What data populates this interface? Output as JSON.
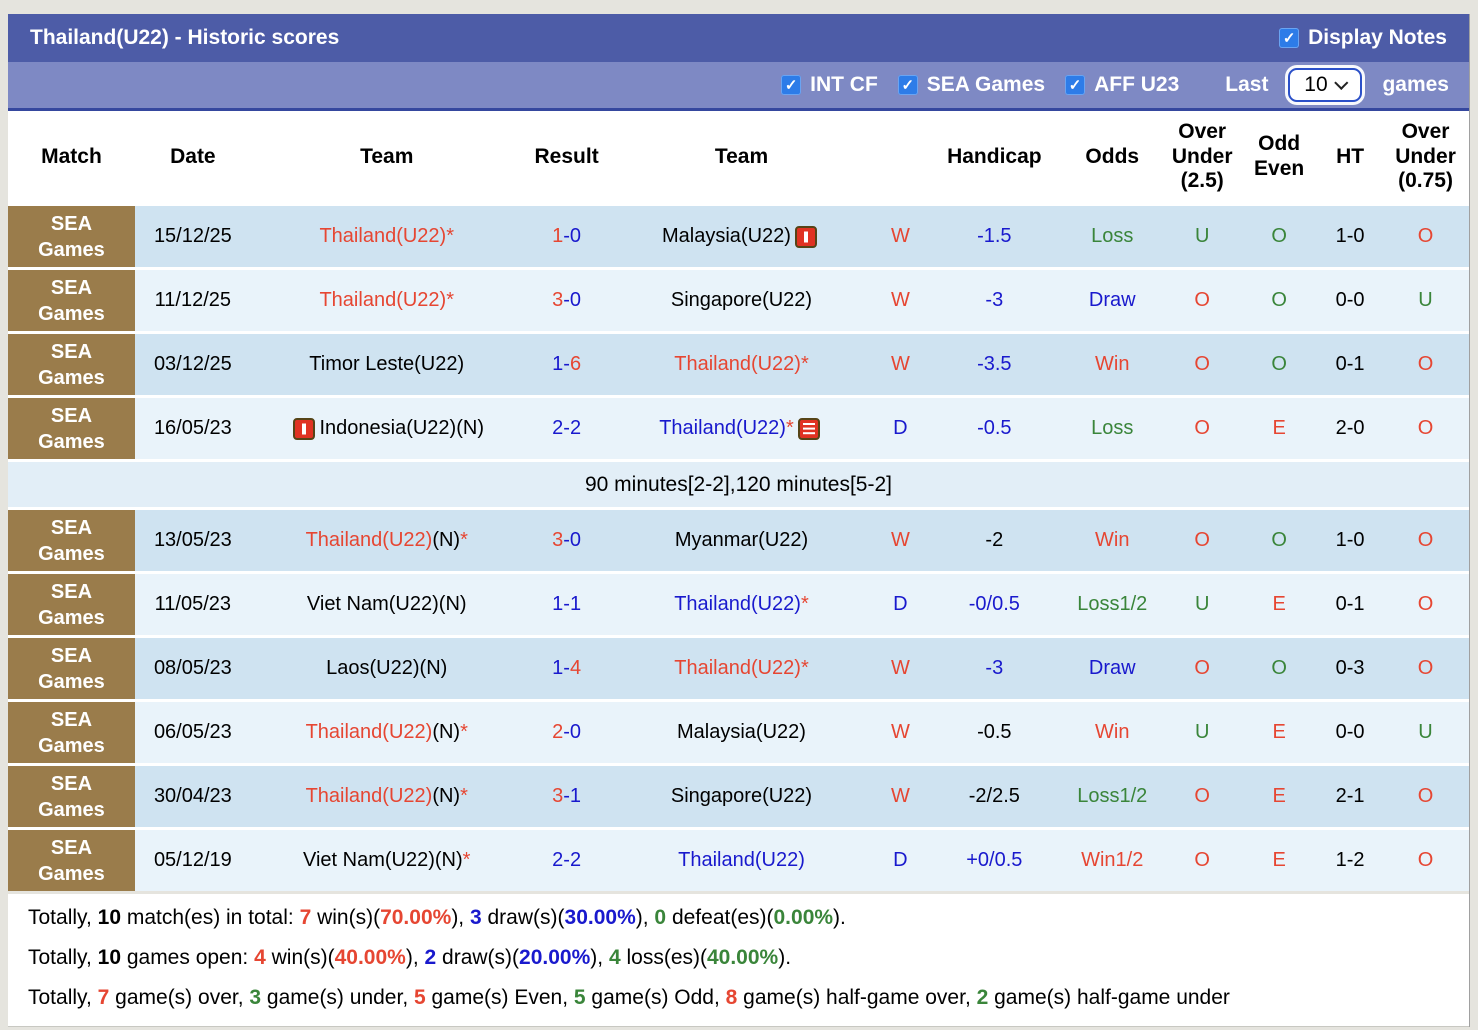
{
  "title_bar": {
    "title": "Thailand(U22) - Historic scores",
    "display_notes_label": "Display Notes",
    "display_notes_checked": true
  },
  "filter_bar": {
    "checkboxes": [
      {
        "label": "INT CF",
        "checked": true
      },
      {
        "label": "SEA Games",
        "checked": true
      },
      {
        "label": "AFF U23",
        "checked": true
      }
    ],
    "last_label": "Last",
    "last_value": "10",
    "games_label": "games"
  },
  "colors": {
    "win": "#e64632",
    "draw": "#1919cd",
    "loss": "#3a853a",
    "title_bar": "#4d5ca7",
    "filter_bar": "#7e89c4",
    "match_badge": "#9a7c4b",
    "row_dark": "#cfe3f1",
    "row_light": "#e9f3fa"
  },
  "table": {
    "headers": [
      {
        "col": "match",
        "lines": [
          "Match"
        ]
      },
      {
        "col": "date",
        "lines": [
          "Date"
        ]
      },
      {
        "col": "team1",
        "lines": [
          "Team"
        ]
      },
      {
        "col": "result",
        "lines": [
          "Result"
        ]
      },
      {
        "col": "team2",
        "lines": [
          "Team"
        ]
      },
      {
        "col": "wdl",
        "lines": []
      },
      {
        "col": "handicap",
        "lines": [
          "Handicap"
        ]
      },
      {
        "col": "odds",
        "lines": [
          "Odds"
        ]
      },
      {
        "col": "ou25",
        "lines": [
          "Over",
          "Under",
          "(2.5)"
        ]
      },
      {
        "col": "oddeven",
        "lines": [
          "Odd",
          "Even"
        ]
      },
      {
        "col": "ht",
        "lines": [
          "HT"
        ]
      },
      {
        "col": "ou075",
        "lines": [
          "Over",
          "Under",
          "(0.75)"
        ]
      }
    ],
    "rows": [
      {
        "shade": "dark",
        "match": "SEA Games",
        "date": "15/12/25",
        "team1": [
          {
            "t": "Thailand(U22)*",
            "c": "red"
          }
        ],
        "result": [
          {
            "t": "1",
            "c": "red"
          },
          {
            "t": "-0",
            "c": "blue"
          }
        ],
        "team2": [
          {
            "t": "Malaysia(U22)",
            "c": "black"
          },
          {
            "icon": "red-card-icon"
          }
        ],
        "wdl": [
          {
            "t": "W",
            "c": "red"
          }
        ],
        "handicap": [
          {
            "t": "-1.5",
            "c": "blue"
          }
        ],
        "odds": [
          {
            "t": "Loss",
            "c": "green"
          }
        ],
        "ou25": [
          {
            "t": "U",
            "c": "green"
          }
        ],
        "oddeven": [
          {
            "t": "O",
            "c": "green"
          }
        ],
        "ht": "1-0",
        "ou075": [
          {
            "t": "O",
            "c": "red"
          }
        ]
      },
      {
        "shade": "light",
        "match": "SEA Games",
        "date": "11/12/25",
        "team1": [
          {
            "t": "Thailand(U22)*",
            "c": "red"
          }
        ],
        "result": [
          {
            "t": "3",
            "c": "red"
          },
          {
            "t": "-0",
            "c": "blue"
          }
        ],
        "team2": [
          {
            "t": "Singapore(U22)",
            "c": "black"
          }
        ],
        "wdl": [
          {
            "t": "W",
            "c": "red"
          }
        ],
        "handicap": [
          {
            "t": "-3",
            "c": "blue"
          }
        ],
        "odds": [
          {
            "t": "Draw",
            "c": "blue"
          }
        ],
        "ou25": [
          {
            "t": "O",
            "c": "red"
          }
        ],
        "oddeven": [
          {
            "t": "O",
            "c": "green"
          }
        ],
        "ht": "0-0",
        "ou075": [
          {
            "t": "U",
            "c": "green"
          }
        ]
      },
      {
        "shade": "dark",
        "match": "SEA Games",
        "date": "03/12/25",
        "team1": [
          {
            "t": "Timor Leste(U22)",
            "c": "black"
          }
        ],
        "result": [
          {
            "t": "1-",
            "c": "blue"
          },
          {
            "t": "6",
            "c": "red"
          }
        ],
        "team2": [
          {
            "t": "Thailand(U22)*",
            "c": "red"
          }
        ],
        "wdl": [
          {
            "t": "W",
            "c": "red"
          }
        ],
        "handicap": [
          {
            "t": "-3.5",
            "c": "blue"
          }
        ],
        "odds": [
          {
            "t": "Win",
            "c": "red"
          }
        ],
        "ou25": [
          {
            "t": "O",
            "c": "red"
          }
        ],
        "oddeven": [
          {
            "t": "O",
            "c": "green"
          }
        ],
        "ht": "0-1",
        "ou075": [
          {
            "t": "O",
            "c": "red"
          }
        ]
      },
      {
        "shade": "light",
        "match": "SEA Games",
        "date": "16/05/23",
        "team1": [
          {
            "icon": "red-card-icon"
          },
          {
            "t": "Indonesia(U22)(N)",
            "c": "black"
          }
        ],
        "result": [
          {
            "t": "2-2",
            "c": "blue"
          }
        ],
        "team2": [
          {
            "t": "Thailand(U22)",
            "c": "blue"
          },
          {
            "t": "*",
            "c": "red"
          },
          {
            "icon": "note-icon"
          }
        ],
        "wdl": [
          {
            "t": "D",
            "c": "blue"
          }
        ],
        "handicap": [
          {
            "t": "-0.5",
            "c": "blue"
          }
        ],
        "odds": [
          {
            "t": "Loss",
            "c": "green"
          }
        ],
        "ou25": [
          {
            "t": "O",
            "c": "red"
          }
        ],
        "oddeven": [
          {
            "t": "E",
            "c": "red"
          }
        ],
        "ht": "2-0",
        "ou075": [
          {
            "t": "O",
            "c": "red"
          }
        ]
      },
      {
        "note": "90 minutes[2-2],120 minutes[5-2]"
      },
      {
        "shade": "dark",
        "match": "SEA Games",
        "date": "13/05/23",
        "team1": [
          {
            "t": "Thailand(U22)",
            "c": "red"
          },
          {
            "t": "(N)",
            "c": "black"
          },
          {
            "t": "*",
            "c": "red"
          }
        ],
        "result": [
          {
            "t": "3",
            "c": "red"
          },
          {
            "t": "-0",
            "c": "blue"
          }
        ],
        "team2": [
          {
            "t": "Myanmar(U22)",
            "c": "black"
          }
        ],
        "wdl": [
          {
            "t": "W",
            "c": "red"
          }
        ],
        "handicap": [
          {
            "t": "-2",
            "c": "black"
          }
        ],
        "odds": [
          {
            "t": "Win",
            "c": "red"
          }
        ],
        "ou25": [
          {
            "t": "O",
            "c": "red"
          }
        ],
        "oddeven": [
          {
            "t": "O",
            "c": "green"
          }
        ],
        "ht": "1-0",
        "ou075": [
          {
            "t": "O",
            "c": "red"
          }
        ]
      },
      {
        "shade": "light",
        "match": "SEA Games",
        "date": "11/05/23",
        "team1": [
          {
            "t": "Viet Nam(U22)(N)",
            "c": "black"
          }
        ],
        "result": [
          {
            "t": "1-1",
            "c": "blue"
          }
        ],
        "team2": [
          {
            "t": "Thailand(U22)",
            "c": "blue"
          },
          {
            "t": "*",
            "c": "red"
          }
        ],
        "wdl": [
          {
            "t": "D",
            "c": "blue"
          }
        ],
        "handicap": [
          {
            "t": "-0/0.5",
            "c": "blue"
          }
        ],
        "odds": [
          {
            "t": "Loss1/2",
            "c": "green"
          }
        ],
        "ou25": [
          {
            "t": "U",
            "c": "green"
          }
        ],
        "oddeven": [
          {
            "t": "E",
            "c": "red"
          }
        ],
        "ht": "0-1",
        "ou075": [
          {
            "t": "O",
            "c": "red"
          }
        ]
      },
      {
        "shade": "dark",
        "match": "SEA Games",
        "date": "08/05/23",
        "team1": [
          {
            "t": "Laos(U22)(N)",
            "c": "black"
          }
        ],
        "result": [
          {
            "t": "1-",
            "c": "blue"
          },
          {
            "t": "4",
            "c": "red"
          }
        ],
        "team2": [
          {
            "t": "Thailand(U22)*",
            "c": "red"
          }
        ],
        "wdl": [
          {
            "t": "W",
            "c": "red"
          }
        ],
        "handicap": [
          {
            "t": "-3",
            "c": "blue"
          }
        ],
        "odds": [
          {
            "t": "Draw",
            "c": "blue"
          }
        ],
        "ou25": [
          {
            "t": "O",
            "c": "red"
          }
        ],
        "oddeven": [
          {
            "t": "O",
            "c": "green"
          }
        ],
        "ht": "0-3",
        "ou075": [
          {
            "t": "O",
            "c": "red"
          }
        ]
      },
      {
        "shade": "light",
        "match": "SEA Games",
        "date": "06/05/23",
        "team1": [
          {
            "t": "Thailand(U22)",
            "c": "red"
          },
          {
            "t": "(N)",
            "c": "black"
          },
          {
            "t": "*",
            "c": "red"
          }
        ],
        "result": [
          {
            "t": "2",
            "c": "red"
          },
          {
            "t": "-0",
            "c": "blue"
          }
        ],
        "team2": [
          {
            "t": "Malaysia(U22)",
            "c": "black"
          }
        ],
        "wdl": [
          {
            "t": "W",
            "c": "red"
          }
        ],
        "handicap": [
          {
            "t": "-0.5",
            "c": "black"
          }
        ],
        "odds": [
          {
            "t": "Win",
            "c": "red"
          }
        ],
        "ou25": [
          {
            "t": "U",
            "c": "green"
          }
        ],
        "oddeven": [
          {
            "t": "E",
            "c": "red"
          }
        ],
        "ht": "0-0",
        "ou075": [
          {
            "t": "U",
            "c": "green"
          }
        ]
      },
      {
        "shade": "dark",
        "match": "SEA Games",
        "date": "30/04/23",
        "team1": [
          {
            "t": "Thailand(U22)",
            "c": "red"
          },
          {
            "t": "(N)",
            "c": "black"
          },
          {
            "t": "*",
            "c": "red"
          }
        ],
        "result": [
          {
            "t": "3",
            "c": "red"
          },
          {
            "t": "-1",
            "c": "blue"
          }
        ],
        "team2": [
          {
            "t": "Singapore(U22)",
            "c": "black"
          }
        ],
        "wdl": [
          {
            "t": "W",
            "c": "red"
          }
        ],
        "handicap": [
          {
            "t": "-2/2.5",
            "c": "black"
          }
        ],
        "odds": [
          {
            "t": "Loss1/2",
            "c": "green"
          }
        ],
        "ou25": [
          {
            "t": "O",
            "c": "red"
          }
        ],
        "oddeven": [
          {
            "t": "E",
            "c": "red"
          }
        ],
        "ht": "2-1",
        "ou075": [
          {
            "t": "O",
            "c": "red"
          }
        ]
      },
      {
        "shade": "light",
        "match": "SEA Games",
        "date": "05/12/19",
        "team1": [
          {
            "t": "Viet Nam(U22)(N)",
            "c": "black"
          },
          {
            "t": "*",
            "c": "red"
          }
        ],
        "result": [
          {
            "t": "2-2",
            "c": "blue"
          }
        ],
        "team2": [
          {
            "t": "Thailand(U22)",
            "c": "blue"
          }
        ],
        "wdl": [
          {
            "t": "D",
            "c": "blue"
          }
        ],
        "handicap": [
          {
            "t": "+0/0.5",
            "c": "blue"
          }
        ],
        "odds": [
          {
            "t": "Win1/2",
            "c": "red"
          }
        ],
        "ou25": [
          {
            "t": "O",
            "c": "red"
          }
        ],
        "oddeven": [
          {
            "t": "E",
            "c": "red"
          }
        ],
        "ht": "1-2",
        "ou075": [
          {
            "t": "O",
            "c": "red"
          }
        ]
      }
    ]
  },
  "summary": {
    "lines": [
      [
        {
          "t": "Totally, "
        },
        {
          "t": "10",
          "b": 1
        },
        {
          "t": " match(es) in total: "
        },
        {
          "t": "7",
          "c": "red",
          "b": 1
        },
        {
          "t": " win(s)("
        },
        {
          "t": "70.00%",
          "c": "red",
          "b": 1
        },
        {
          "t": "), "
        },
        {
          "t": "3",
          "c": "blue",
          "b": 1
        },
        {
          "t": " draw(s)("
        },
        {
          "t": "30.00%",
          "c": "blue",
          "b": 1
        },
        {
          "t": "), "
        },
        {
          "t": "0",
          "c": "green",
          "b": 1
        },
        {
          "t": " defeat(es)("
        },
        {
          "t": "0.00%",
          "c": "green",
          "b": 1
        },
        {
          "t": ")."
        }
      ],
      [
        {
          "t": "Totally, "
        },
        {
          "t": "10",
          "b": 1
        },
        {
          "t": " games open: "
        },
        {
          "t": "4",
          "c": "red",
          "b": 1
        },
        {
          "t": " win(s)("
        },
        {
          "t": "40.00%",
          "c": "red",
          "b": 1
        },
        {
          "t": "), "
        },
        {
          "t": "2",
          "c": "blue",
          "b": 1
        },
        {
          "t": " draw(s)("
        },
        {
          "t": "20.00%",
          "c": "blue",
          "b": 1
        },
        {
          "t": "), "
        },
        {
          "t": "4",
          "c": "green",
          "b": 1
        },
        {
          "t": " loss(es)("
        },
        {
          "t": "40.00%",
          "c": "green",
          "b": 1
        },
        {
          "t": ")."
        }
      ],
      [
        {
          "t": "Totally, "
        },
        {
          "t": "7",
          "c": "red",
          "b": 1
        },
        {
          "t": " game(s) over, "
        },
        {
          "t": "3",
          "c": "green",
          "b": 1
        },
        {
          "t": " game(s) under, "
        },
        {
          "t": "5",
          "c": "red",
          "b": 1
        },
        {
          "t": " game(s) Even, "
        },
        {
          "t": "5",
          "c": "green",
          "b": 1
        },
        {
          "t": " game(s) Odd, "
        },
        {
          "t": "8",
          "c": "red",
          "b": 1
        },
        {
          "t": " game(s) half-game over, "
        },
        {
          "t": "2",
          "c": "green",
          "b": 1
        },
        {
          "t": " game(s) half-game under"
        }
      ]
    ]
  }
}
